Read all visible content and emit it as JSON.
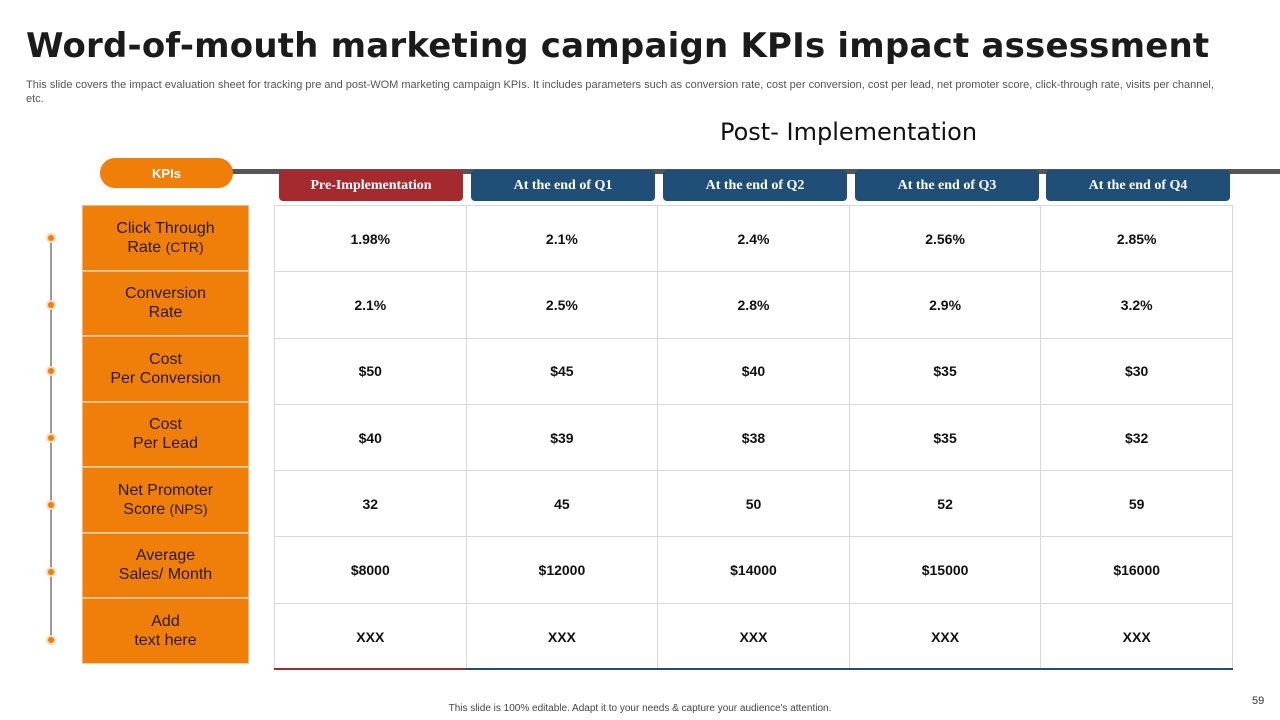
{
  "title": "Word-of-mouth marketing campaign KPIs impact assessment",
  "subtitle": "This slide covers the impact evaluation sheet for tracking pre and post-WOM marketing campaign KPIs. It includes parameters such as conversion rate, cost per conversion, cost per lead, net promoter score, click-through rate, visits per channel, etc.",
  "post_implementation_label": "Post- Implementation",
  "kpis_label": "KPIs",
  "columns": [
    "Pre-Implementation",
    "At the end of Q1",
    "At the end of Q2",
    "At the end of Q3",
    "At the end of Q4"
  ],
  "kpis": [
    {
      "line1": "Click Through",
      "line2": "Rate",
      "suffix": "(CTR)"
    },
    {
      "line1": "Conversion",
      "line2": "Rate",
      "suffix": ""
    },
    {
      "line1": "Cost",
      "line2": "Per Conversion",
      "suffix": ""
    },
    {
      "line1": "Cost",
      "line2": "Per Lead",
      "suffix": ""
    },
    {
      "line1": "Net Promoter",
      "line2": "Score",
      "suffix": "(NPS)"
    },
    {
      "line1": "Average",
      "line2": "Sales/ Month",
      "suffix": ""
    },
    {
      "line1": "Add",
      "line2": "text here",
      "suffix": ""
    }
  ],
  "rows": [
    [
      "1.98%",
      "2.1%",
      "2.4%",
      "2.56%",
      "2.85%"
    ],
    [
      "2.1%",
      "2.5%",
      "2.8%",
      "2.9%",
      "3.2%"
    ],
    [
      "$50",
      "$45",
      "$40",
      "$35",
      "$30"
    ],
    [
      "$40",
      "$39",
      "$38",
      "$35",
      "$32"
    ],
    [
      "32",
      "45",
      "50",
      "52",
      "59"
    ],
    [
      "$8000",
      "$12000",
      "$14000",
      "$15000",
      "$16000"
    ],
    [
      "XXX",
      "XXX",
      "XXX",
      "XXX",
      "XXX"
    ]
  ],
  "footer": "This slide is 100% editable.  Adapt it to your needs & capture your audience's attention.",
  "page_number": "59",
  "colors": {
    "accent": "#f07f0a",
    "pre": "#a52a30",
    "post": "#1f4f77"
  }
}
